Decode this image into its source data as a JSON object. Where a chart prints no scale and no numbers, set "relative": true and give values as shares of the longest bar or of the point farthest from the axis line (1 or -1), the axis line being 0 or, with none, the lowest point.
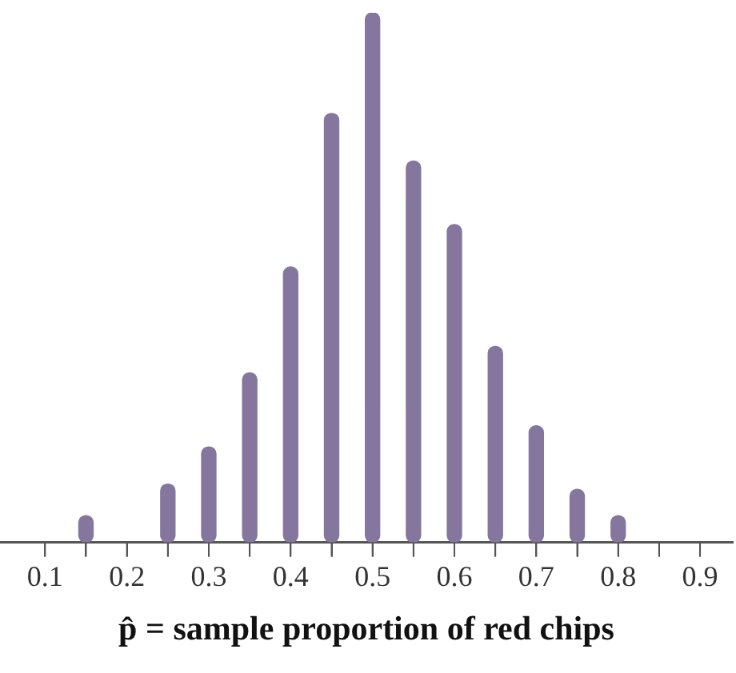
{
  "chart_data": {
    "type": "bar",
    "xlabel": "p̂ = sample proportion of red chips",
    "relative": true,
    "color": "#85769e",
    "x": [
      0.15,
      0.25,
      0.3,
      0.35,
      0.4,
      0.45,
      0.5,
      0.55,
      0.6,
      0.65,
      0.7,
      0.75,
      0.8
    ],
    "values": [
      0.05,
      0.11,
      0.18,
      0.32,
      0.52,
      0.81,
      1,
      0.72,
      0.6,
      0.37,
      0.22,
      0.1,
      0.05
    ],
    "xlim": [
      0.045,
      0.94
    ],
    "xticks": [
      0.1,
      {
        "value": 0.15,
        "label": null
      },
      0.2,
      {
        "value": 0.25,
        "label": null
      },
      0.3,
      {
        "value": 0.35,
        "label": null
      },
      0.4,
      {
        "value": 0.45,
        "label": null
      },
      0.5,
      {
        "value": 0.55,
        "label": null
      },
      0.6,
      {
        "value": 0.65,
        "label": null
      },
      0.7,
      {
        "value": 0.75,
        "label": null
      },
      0.8,
      {
        "value": 0.85,
        "label": null
      },
      0.9
    ]
  }
}
